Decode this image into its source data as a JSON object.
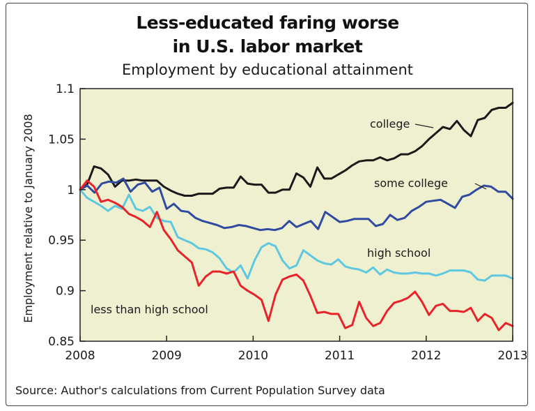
{
  "chart_data": {
    "type": "line",
    "title": "Less-educated faring worse in U.S. labor market",
    "title_lines": [
      "Less-educated faring worse",
      "in U.S. labor market"
    ],
    "subtitle": "Employment by educational attainment",
    "ylabel": "Employment relative to January 2008",
    "xlabel": "",
    "source": "Source: Author's calculations from Current Population Survey data",
    "x_ticks": [
      "2008",
      "2009",
      "2010",
      "2011",
      "2012",
      "2013"
    ],
    "y_ticks": [
      "0.85",
      "0.9",
      "0.95",
      "1",
      "1.05",
      "1.1"
    ],
    "xlim": [
      2008,
      2013
    ],
    "ylim": [
      0.85,
      1.1
    ],
    "grid": false,
    "background_color": "#eef0d0",
    "series": [
      {
        "name": "college",
        "color": "#1a1a1a",
        "label_line": true,
        "values": [
          1.0,
          1.005,
          1.023,
          1.021,
          1.015,
          1.003,
          1.009,
          1.009,
          1.01,
          1.009,
          1.009,
          1.009,
          1.003,
          0.999,
          0.996,
          0.994,
          0.994,
          0.996,
          0.996,
          0.996,
          1.001,
          1.002,
          1.002,
          1.013,
          1.006,
          1.005,
          1.005,
          0.997,
          0.997,
          1.0,
          1.0,
          1.016,
          1.012,
          1.003,
          1.022,
          1.011,
          1.011,
          1.015,
          1.019,
          1.024,
          1.028,
          1.029,
          1.029,
          1.032,
          1.029,
          1.031,
          1.035,
          1.035,
          1.038,
          1.043,
          1.05,
          1.056,
          1.062,
          1.06,
          1.068,
          1.059,
          1.053,
          1.069,
          1.071,
          1.079,
          1.081,
          1.081,
          1.086
        ]
      },
      {
        "name": "some college",
        "color": "#2f4aa0",
        "label_line": true,
        "values": [
          1.0,
          1.004,
          0.997,
          1.006,
          1.008,
          1.007,
          1.011,
          0.998,
          1.005,
          1.007,
          0.998,
          1.002,
          0.981,
          0.986,
          0.979,
          0.978,
          0.972,
          0.969,
          0.967,
          0.965,
          0.962,
          0.963,
          0.965,
          0.964,
          0.962,
          0.96,
          0.961,
          0.96,
          0.962,
          0.969,
          0.963,
          0.966,
          0.969,
          0.961,
          0.978,
          0.973,
          0.968,
          0.969,
          0.971,
          0.971,
          0.971,
          0.964,
          0.966,
          0.975,
          0.97,
          0.972,
          0.979,
          0.983,
          0.988,
          0.989,
          0.99,
          0.986,
          0.982,
          0.993,
          0.995,
          1.0,
          1.004,
          1.003,
          0.998,
          0.998,
          0.991
        ]
      },
      {
        "name": "high school",
        "color": "#5ec8e0",
        "label_line": false,
        "values": [
          1.0,
          0.992,
          0.988,
          0.984,
          0.979,
          0.984,
          0.981,
          0.995,
          0.981,
          0.979,
          0.983,
          0.972,
          0.969,
          0.968,
          0.953,
          0.95,
          0.947,
          0.942,
          0.941,
          0.938,
          0.932,
          0.922,
          0.918,
          0.925,
          0.912,
          0.93,
          0.943,
          0.947,
          0.944,
          0.93,
          0.922,
          0.925,
          0.94,
          0.935,
          0.93,
          0.927,
          0.926,
          0.931,
          0.924,
          0.922,
          0.921,
          0.918,
          0.923,
          0.916,
          0.921,
          0.918,
          0.917,
          0.917,
          0.918,
          0.917,
          0.917,
          0.915,
          0.917,
          0.92,
          0.92,
          0.92,
          0.918,
          0.911,
          0.91,
          0.915,
          0.915,
          0.915,
          0.912
        ]
      },
      {
        "name": "less than high school",
        "color": "#e8242a",
        "label_line": false,
        "values": [
          1.0,
          1.009,
          1.003,
          0.988,
          0.99,
          0.987,
          0.983,
          0.976,
          0.973,
          0.969,
          0.963,
          0.978,
          0.96,
          0.951,
          0.94,
          0.934,
          0.928,
          0.905,
          0.914,
          0.919,
          0.919,
          0.917,
          0.919,
          0.905,
          0.9,
          0.896,
          0.891,
          0.87,
          0.896,
          0.911,
          0.914,
          0.916,
          0.91,
          0.895,
          0.878,
          0.879,
          0.877,
          0.877,
          0.863,
          0.866,
          0.889,
          0.873,
          0.865,
          0.868,
          0.88,
          0.888,
          0.89,
          0.893,
          0.899,
          0.889,
          0.876,
          0.885,
          0.887,
          0.88,
          0.88,
          0.879,
          0.883,
          0.87,
          0.877,
          0.873,
          0.861,
          0.868,
          0.865
        ]
      }
    ]
  }
}
